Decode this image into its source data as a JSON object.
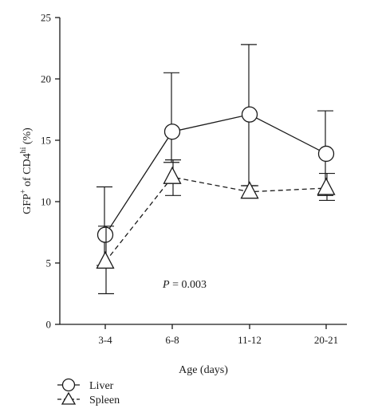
{
  "chart_data": {
    "type": "line",
    "title": "",
    "xlabel": "Age (days)",
    "ylabel_main": "GFP",
    "ylabel_sup1": "+",
    "ylabel_mid": " of CD4",
    "ylabel_sup2": "hi",
    "ylabel_unit": " (%)",
    "categories": [
      "3-4",
      "6-8",
      "11-12",
      "20-21"
    ],
    "ylim": [
      0,
      25
    ],
    "yticks": [
      "0",
      "5",
      "10",
      "15",
      "20",
      "25"
    ],
    "yticks_values": [
      0,
      5,
      10,
      15,
      20,
      25
    ],
    "grid": false,
    "legend_position": "bottom-left",
    "annotation_italic": "P",
    "annotation_rest": " = 0.003",
    "series": [
      {
        "name": "Liver",
        "marker": "circle",
        "line_style": "solid",
        "color": "#1a1a1a",
        "values": [
          7.3,
          15.7,
          17.1,
          13.9
        ],
        "err_low": [
          4.8,
          13.2,
          11.3,
          10.5
        ],
        "err_high": [
          11.2,
          20.5,
          22.8,
          17.4
        ]
      },
      {
        "name": "Spleen",
        "marker": "triangle",
        "line_style": "dashed",
        "color": "#1a1a1a",
        "values": [
          5.1,
          12.0,
          10.8,
          11.1
        ],
        "err_low": [
          2.5,
          10.5,
          10.3,
          10.1
        ],
        "err_high": [
          8.0,
          13.4,
          11.3,
          12.3
        ]
      }
    ]
  }
}
